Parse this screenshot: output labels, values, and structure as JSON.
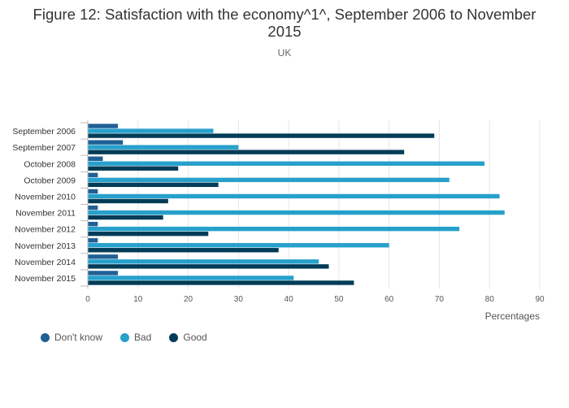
{
  "chart_data": {
    "type": "bar",
    "orientation": "horizontal",
    "title": "Figure 12: Satisfaction with the economy^1^, September 2006 to November 2015",
    "subtitle": "UK",
    "xlabel": "Percentages",
    "ylabel": "",
    "xlim": [
      0,
      90
    ],
    "xticks": [
      0,
      10,
      20,
      30,
      40,
      50,
      60,
      70,
      80,
      90
    ],
    "categories": [
      "September 2006",
      "September 2007",
      "October 2008",
      "October 2009",
      "November 2010",
      "November 2011",
      "November 2012",
      "November 2013",
      "November 2014",
      "November 2015"
    ],
    "series": [
      {
        "name": "Don't know",
        "color": "#206095",
        "values": [
          6,
          7,
          3,
          2,
          2,
          2,
          2,
          2,
          6,
          6
        ]
      },
      {
        "name": "Bad",
        "color": "#27a0cc",
        "values": [
          25,
          30,
          79,
          72,
          82,
          83,
          74,
          60,
          46,
          41
        ]
      },
      {
        "name": "Good",
        "color": "#003c57",
        "values": [
          69,
          63,
          18,
          26,
          16,
          15,
          24,
          38,
          48,
          53
        ]
      }
    ],
    "legend_position": "bottom-left",
    "grid": true
  }
}
